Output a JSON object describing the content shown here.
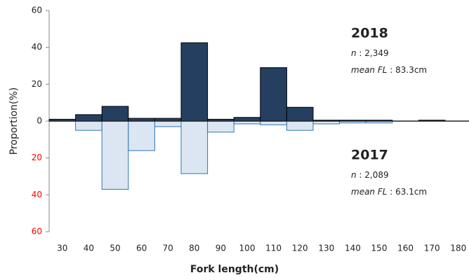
{
  "chart_data": {
    "type": "mirrored_histogram",
    "x_label": "Fork length(cm)",
    "y_label": "Proportion(%)",
    "categories": [
      "30",
      "40",
      "50",
      "60",
      "70",
      "80",
      "90",
      "100",
      "110",
      "120",
      "130",
      "140",
      "150",
      "160",
      "170",
      "180"
    ],
    "series": [
      {
        "name": "2018",
        "color": "#243f60",
        "edge_color": "#000000",
        "values": [
          1,
          3.5,
          8,
          1.5,
          1.5,
          42.5,
          1,
          2,
          29,
          7.5,
          0.5,
          0.5,
          0.5,
          0,
          0.5,
          0
        ],
        "stats": [
          " : 2,349",
          " : 83.3cm"
        ]
      },
      {
        "name": "2017",
        "color": "#dce6f2",
        "edge_color": "#2e75b6",
        "values": [
          0,
          -5,
          -37,
          -16,
          -3,
          -28.5,
          -6,
          -1.5,
          -2,
          -5,
          -1.5,
          -1,
          -1,
          0,
          0,
          0
        ],
        "stats": [
          " : 2,089",
          " : 63.1cm"
        ]
      }
    ],
    "stat_labels": [
      "n",
      "mean FL"
    ],
    "ylim": [
      -60,
      60
    ],
    "yticks": [
      60,
      40,
      20,
      0,
      {
        "value": -20,
        "label": "20"
      },
      {
        "value": -40,
        "label": "40"
      },
      {
        "value": -60,
        "label": "60"
      }
    ],
    "negative_tick_color": "#ff0000"
  }
}
